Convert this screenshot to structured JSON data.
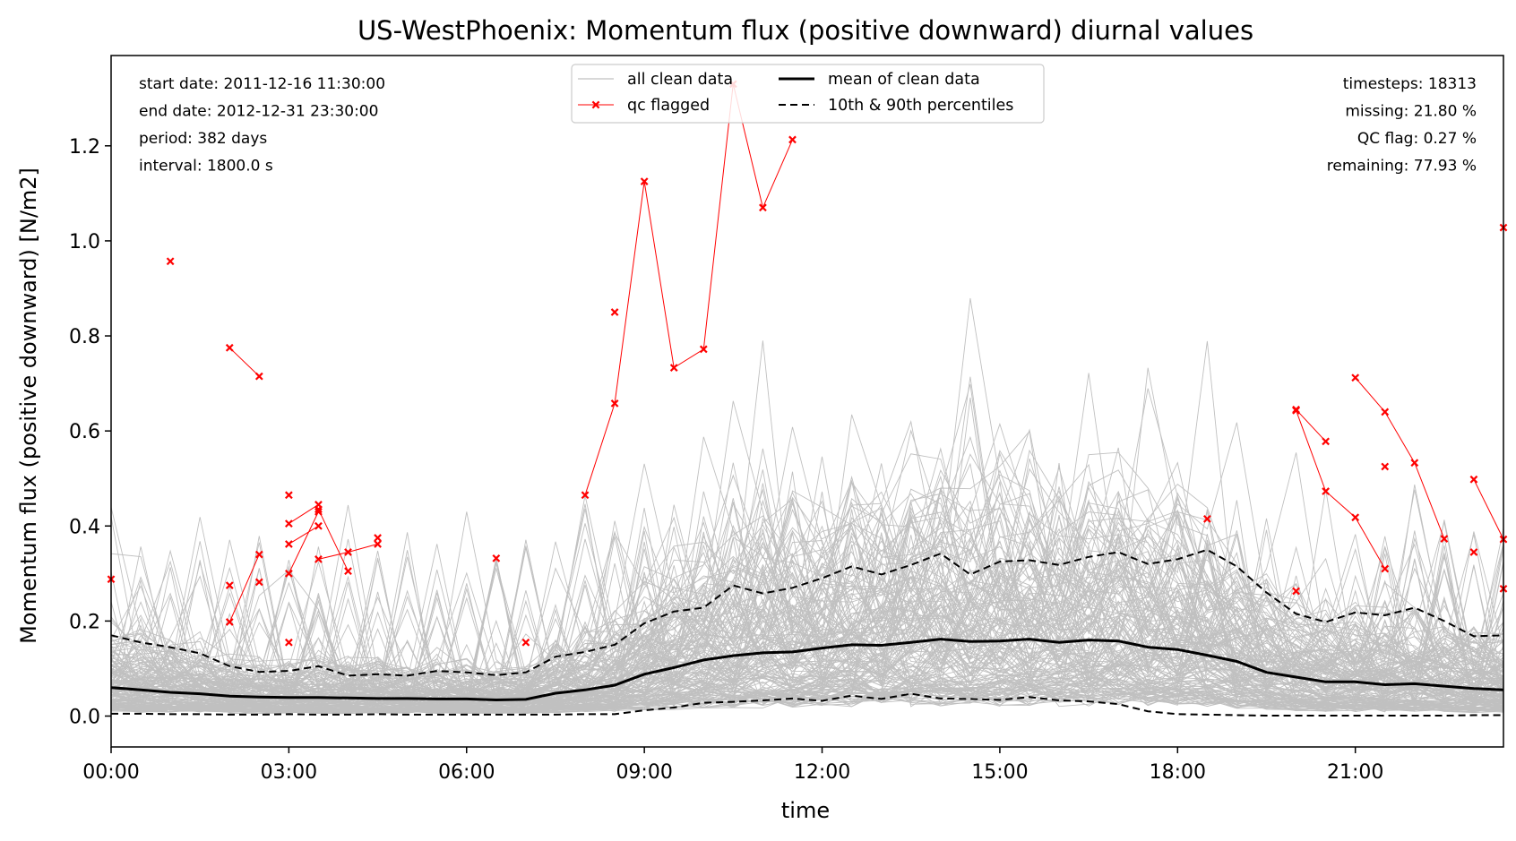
{
  "chart_data": {
    "type": "line",
    "title": "US-WestPhoenix: Momentum flux (positive downward) diurnal values",
    "xlabel": "time",
    "ylabel": "Momentum flux (positive downward) [N/m2]",
    "xlim": [
      0,
      23.5
    ],
    "ylim": [
      -0.065,
      1.39
    ],
    "x_ticks": [
      0,
      3,
      6,
      9,
      12,
      15,
      18,
      21
    ],
    "x_tick_labels": [
      "00:00",
      "03:00",
      "06:00",
      "09:00",
      "12:00",
      "15:00",
      "18:00",
      "21:00"
    ],
    "y_ticks": [
      0.0,
      0.2,
      0.4,
      0.6,
      0.8,
      1.0,
      1.2
    ],
    "y_tick_labels": [
      "0.0",
      "0.2",
      "0.4",
      "0.6",
      "0.8",
      "1.0",
      "1.2"
    ],
    "grid": false,
    "legend": {
      "placement": "top-center",
      "entries": [
        {
          "label": "all clean data",
          "style": "thin-grey-line",
          "color": "#c0c0c0"
        },
        {
          "label": "qc flagged",
          "style": "red-line-x-marker",
          "color": "#ff0000"
        },
        {
          "label": "mean of clean data",
          "style": "thick-black-line",
          "color": "#000000"
        },
        {
          "label": "10th & 90th percentiles",
          "style": "dashed-black-line",
          "color": "#000000"
        }
      ]
    },
    "info_left": [
      "start date: 2011-12-16 11:30:00",
      "end date: 2012-12-31 23:30:00",
      "period: 382 days",
      "interval: 1800.0 s"
    ],
    "info_right": [
      "timesteps: 18313",
      "missing: 21.80 %",
      "QC flag: 0.27 %",
      "remaining: 77.93 %"
    ],
    "x": [
      0,
      0.5,
      1,
      1.5,
      2,
      2.5,
      3,
      3.5,
      4,
      4.5,
      5,
      5.5,
      6,
      6.5,
      7,
      7.5,
      8,
      8.5,
      9,
      9.5,
      10,
      10.5,
      11,
      11.5,
      12,
      12.5,
      13,
      13.5,
      14,
      14.5,
      15,
      15.5,
      16,
      16.5,
      17,
      17.5,
      18,
      18.5,
      19,
      19.5,
      20,
      20.5,
      21,
      21.5,
      22,
      22.5,
      23,
      23.5
    ],
    "series": [
      {
        "name": "mean of clean data",
        "color": "#000000",
        "values": [
          0.06,
          0.055,
          0.05,
          0.047,
          0.042,
          0.04,
          0.039,
          0.039,
          0.038,
          0.037,
          0.037,
          0.036,
          0.036,
          0.034,
          0.035,
          0.048,
          0.055,
          0.065,
          0.088,
          0.102,
          0.118,
          0.127,
          0.133,
          0.135,
          0.143,
          0.15,
          0.149,
          0.155,
          0.162,
          0.157,
          0.158,
          0.162,
          0.155,
          0.16,
          0.158,
          0.145,
          0.14,
          0.128,
          0.115,
          0.092,
          0.082,
          0.072,
          0.072,
          0.066,
          0.068,
          0.063,
          0.058,
          0.055
        ]
      },
      {
        "name": "90th percentile",
        "color": "#000000",
        "values": [
          0.17,
          0.155,
          0.145,
          0.132,
          0.105,
          0.093,
          0.095,
          0.105,
          0.085,
          0.088,
          0.085,
          0.095,
          0.092,
          0.086,
          0.092,
          0.125,
          0.135,
          0.15,
          0.195,
          0.22,
          0.228,
          0.275,
          0.258,
          0.27,
          0.29,
          0.315,
          0.298,
          0.318,
          0.342,
          0.298,
          0.325,
          0.328,
          0.318,
          0.335,
          0.345,
          0.32,
          0.33,
          0.35,
          0.315,
          0.26,
          0.215,
          0.198,
          0.218,
          0.212,
          0.228,
          0.2,
          0.168,
          0.17
        ]
      },
      {
        "name": "10th percentile",
        "color": "#000000",
        "values": [
          0.005,
          0.005,
          0.004,
          0.004,
          0.003,
          0.003,
          0.004,
          0.003,
          0.003,
          0.004,
          0.003,
          0.003,
          0.003,
          0.003,
          0.003,
          0.003,
          0.004,
          0.004,
          0.012,
          0.018,
          0.028,
          0.03,
          0.033,
          0.037,
          0.032,
          0.043,
          0.036,
          0.047,
          0.037,
          0.036,
          0.034,
          0.04,
          0.033,
          0.031,
          0.025,
          0.01,
          0.004,
          0.003,
          0.002,
          0.001,
          0.001,
          0.001,
          0.001,
          0.001,
          0.001,
          0.001,
          0.002,
          0.002
        ]
      }
    ],
    "qc_flagged_segments": [
      [
        [
          2,
          0.775
        ],
        [
          2.5,
          0.715
        ]
      ],
      [
        [
          2,
          0.198
        ],
        [
          2.5,
          0.34
        ]
      ],
      [
        [
          3,
          0.3
        ],
        [
          3.5,
          0.43
        ]
      ],
      [
        [
          3,
          0.405
        ],
        [
          3.5,
          0.445
        ]
      ],
      [
        [
          3,
          0.362
        ],
        [
          3.5,
          0.4
        ]
      ],
      [
        [
          3.5,
          0.33
        ],
        [
          4,
          0.345
        ],
        [
          4.5,
          0.362
        ]
      ],
      [
        [
          3.5,
          0.435
        ],
        [
          4,
          0.305
        ]
      ],
      [
        [
          8,
          0.465
        ],
        [
          8.5,
          0.658
        ],
        [
          9,
          1.125
        ],
        [
          9.5,
          0.733
        ],
        [
          10,
          0.772
        ],
        [
          10.5,
          1.33
        ],
        [
          11,
          1.07
        ],
        [
          11.5,
          1.213
        ]
      ],
      [
        [
          20,
          0.645
        ],
        [
          20.5,
          0.578
        ]
      ],
      [
        [
          20,
          0.643
        ],
        [
          20.5,
          0.473
        ],
        [
          21,
          0.418
        ],
        [
          21.5,
          0.31
        ]
      ],
      [
        [
          21,
          0.712
        ],
        [
          21.5,
          0.64
        ],
        [
          22,
          0.533
        ],
        [
          22.5,
          0.373
        ]
      ],
      [
        [
          23,
          0.498
        ],
        [
          23.5,
          0.372
        ]
      ]
    ],
    "qc_flagged_points": [
      [
        0,
        0.288
      ],
      [
        1,
        0.957
      ],
      [
        2,
        0.275
      ],
      [
        2.5,
        0.282
      ],
      [
        3,
        0.465
      ],
      [
        3,
        0.155
      ],
      [
        4.5,
        0.375
      ],
      [
        6.5,
        0.332
      ],
      [
        7,
        0.155
      ],
      [
        8.5,
        0.85
      ],
      [
        18.5,
        0.415
      ],
      [
        20,
        0.263
      ],
      [
        21.5,
        0.525
      ],
      [
        23,
        0.345
      ],
      [
        23.5,
        0.268
      ],
      [
        23.5,
        1.028
      ]
    ]
  }
}
